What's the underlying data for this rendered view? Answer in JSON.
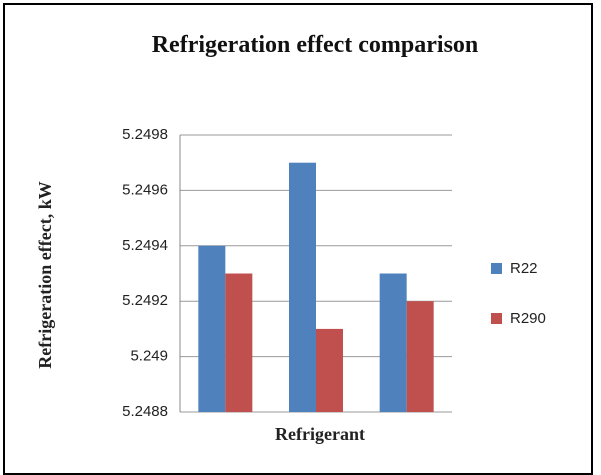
{
  "chart_data": {
    "type": "bar",
    "title": "Refrigeration effect comparison",
    "x_label": "Refrigerant",
    "y_label": "Refrigeration effect, kW",
    "categories": [
      null,
      null,
      null
    ],
    "series": [
      {
        "name": "R22",
        "color": "#4f81bd",
        "values": [
          5.2494,
          5.2497,
          5.2493
        ]
      },
      {
        "name": "R290",
        "color": "#c0504d",
        "values": [
          5.2493,
          5.2491,
          5.2492
        ]
      }
    ],
    "ylim": [
      5.2488,
      5.2498
    ],
    "yticks": [
      5.2488,
      5.249,
      5.2492,
      5.2494,
      5.2496,
      5.2498
    ],
    "grid": true,
    "legend": "right"
  }
}
